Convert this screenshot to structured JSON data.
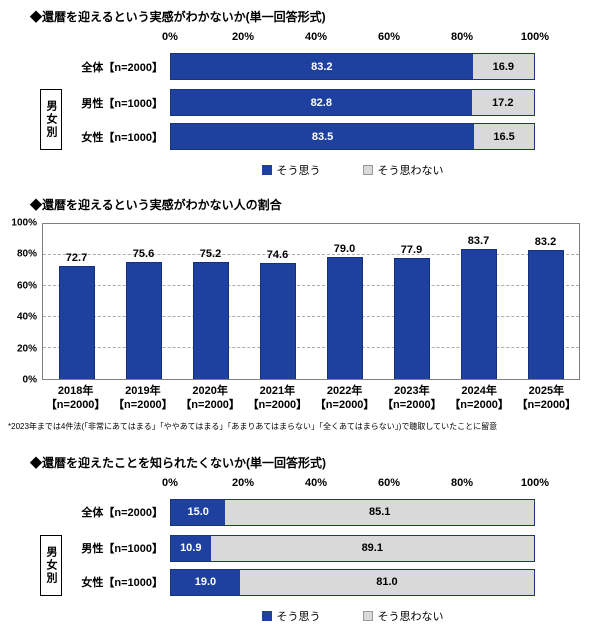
{
  "colors": {
    "bar_blue": "#1e409e",
    "bar_blue_border": "#152f7d",
    "bar_gray": "#d9d9d9",
    "track_border": "#1a357e",
    "grid_line": "#ababab"
  },
  "chart_data": [
    {
      "type": "bar",
      "orientation": "horizontal-stacked",
      "title": "◆還暦を迎えるという実感がわかないか(単一回答形式)",
      "xlim": [
        0,
        100
      ],
      "x_ticks": [
        "0%",
        "20%",
        "40%",
        "60%",
        "80%",
        "100%"
      ],
      "group_label": "男女別",
      "series_labels": [
        "そう思う",
        "そう思わない"
      ],
      "rows": [
        {
          "label": "全体【n=2000】",
          "values": [
            83.2,
            16.9
          ]
        },
        {
          "label": "男性【n=1000】",
          "values": [
            82.8,
            17.2
          ]
        },
        {
          "label": "女性【n=1000】",
          "values": [
            83.5,
            16.5
          ]
        }
      ],
      "legend": [
        "そう思う",
        "そう思わない"
      ],
      "legend_position": "bottom-center"
    },
    {
      "type": "bar",
      "orientation": "vertical",
      "title": "◆還暦を迎えるという実感がわかない人の割合",
      "ylim": [
        0,
        100
      ],
      "y_ticks": [
        "0%",
        "20%",
        "40%",
        "60%",
        "80%",
        "100%"
      ],
      "grid": "dashed-horizontal",
      "categories": [
        {
          "year": "2018年",
          "n": "【n=2000】"
        },
        {
          "year": "2019年",
          "n": "【n=2000】"
        },
        {
          "year": "2020年",
          "n": "【n=2000】"
        },
        {
          "year": "2021年",
          "n": "【n=2000】"
        },
        {
          "year": "2022年",
          "n": "【n=2000】"
        },
        {
          "year": "2023年",
          "n": "【n=2000】"
        },
        {
          "year": "2024年",
          "n": "【n=2000】"
        },
        {
          "year": "2025年",
          "n": "【n=2000】"
        }
      ],
      "values": [
        72.7,
        75.6,
        75.2,
        74.6,
        79.0,
        77.9,
        83.7,
        83.2
      ],
      "footnote": "*2023年までは4件法(「非常にあてはまる」「ややあてはまる」「あまりあてはまらない」「全くあてはまらない」)で聴取していたことに留意"
    },
    {
      "type": "bar",
      "orientation": "horizontal-stacked",
      "title": "◆還暦を迎えたことを知られたくないか(単一回答形式)",
      "xlim": [
        0,
        100
      ],
      "x_ticks": [
        "0%",
        "20%",
        "40%",
        "60%",
        "80%",
        "100%"
      ],
      "group_label": "男女別",
      "series_labels": [
        "そう思う",
        "そう思わない"
      ],
      "rows": [
        {
          "label": "全体【n=2000】",
          "values": [
            15.0,
            85.1
          ]
        },
        {
          "label": "男性【n=1000】",
          "values": [
            10.9,
            89.1
          ]
        },
        {
          "label": "女性【n=1000】",
          "values": [
            19.0,
            81.0
          ]
        }
      ],
      "legend": [
        "そう思う",
        "そう思わない"
      ],
      "legend_position": "bottom-center"
    }
  ]
}
